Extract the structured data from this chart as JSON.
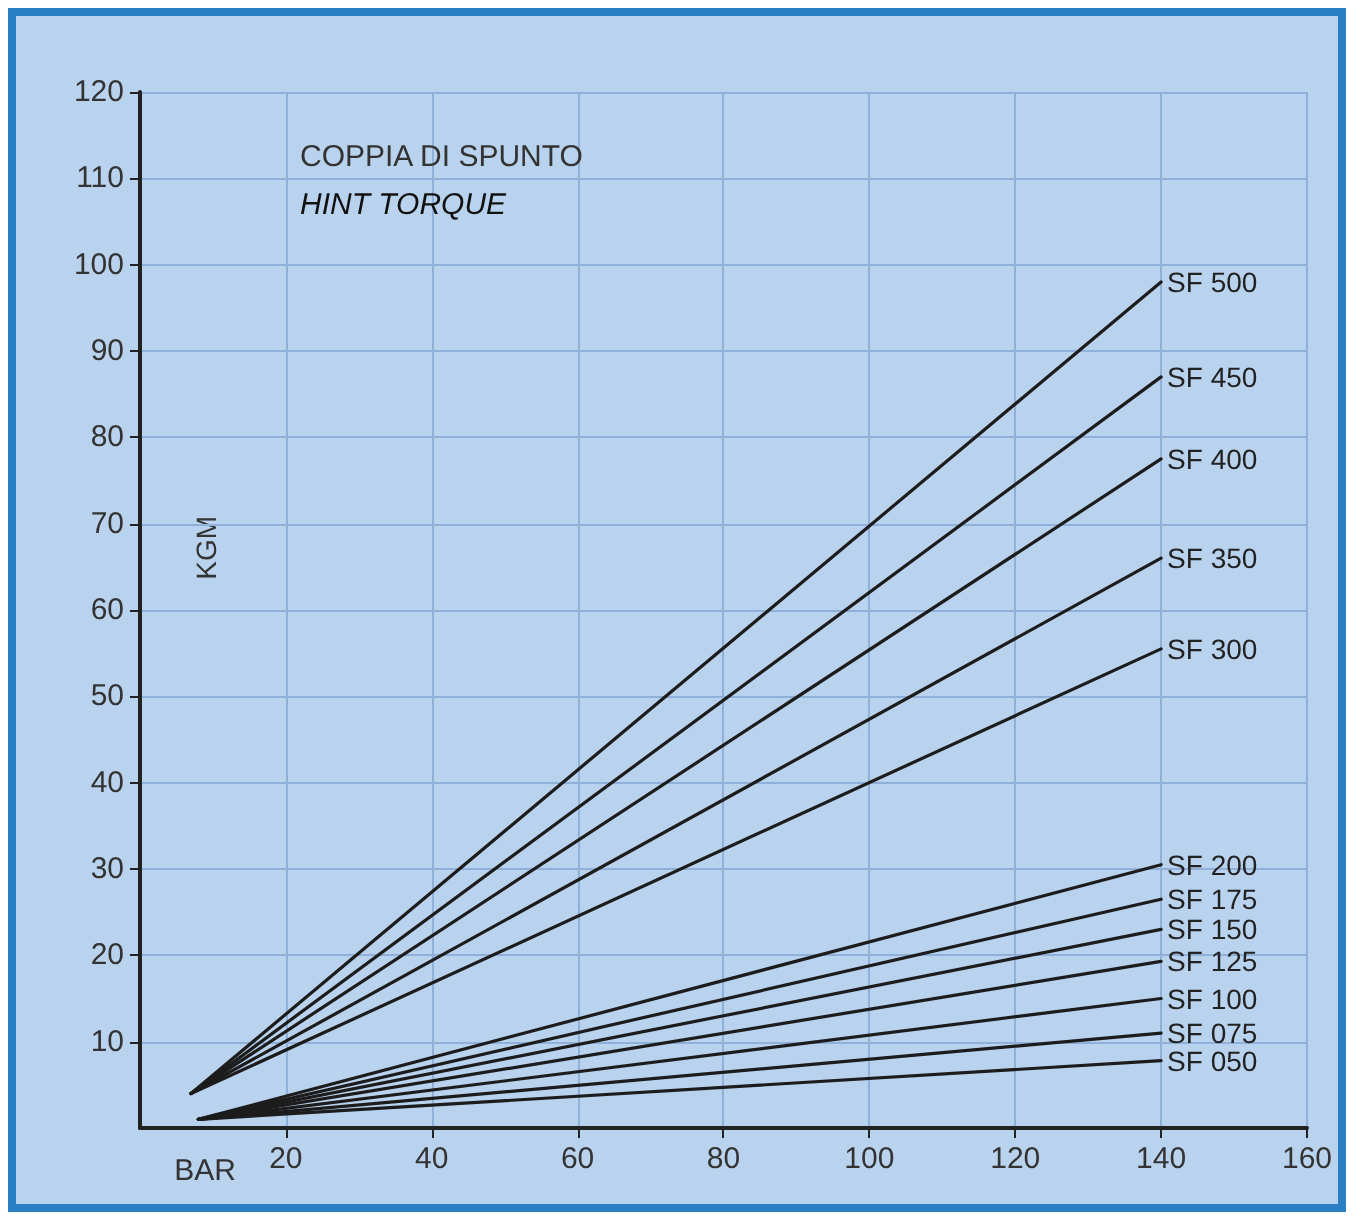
{
  "chart_data": {
    "type": "line",
    "title": "COPPIA DI SPUNTO",
    "subtitle": "HINT TORQUE",
    "xlabel": "BAR",
    "ylabel": "KGM",
    "xlim": [
      0,
      160
    ],
    "xticks": [
      20,
      40,
      60,
      80,
      100,
      120,
      140,
      160
    ],
    "ylim": [
      0,
      120
    ],
    "yticks": [
      10,
      20,
      30,
      40,
      50,
      60,
      70,
      80,
      90,
      100,
      110,
      120
    ],
    "grid": true,
    "legend": false,
    "marker": "none",
    "line_style": "solid",
    "series": [
      {
        "name": "SF 500",
        "color": "#1c1c1c",
        "x": [
          7,
          140
        ],
        "values": [
          4,
          98
        ]
      },
      {
        "name": "SF 450",
        "color": "#1c1c1c",
        "x": [
          7,
          140
        ],
        "values": [
          4,
          87
        ]
      },
      {
        "name": "SF 400",
        "color": "#1c1c1c",
        "x": [
          7,
          140
        ],
        "values": [
          4,
          77.5
        ]
      },
      {
        "name": "SF 350",
        "color": "#1c1c1c",
        "x": [
          7,
          140
        ],
        "values": [
          4,
          66
        ]
      },
      {
        "name": "SF 300",
        "color": "#1c1c1c",
        "x": [
          7,
          140
        ],
        "values": [
          4,
          55.5
        ]
      },
      {
        "name": "SF 200",
        "color": "#1c1c1c",
        "x": [
          8,
          140
        ],
        "values": [
          1,
          30.5
        ]
      },
      {
        "name": "SF 175",
        "color": "#1c1c1c",
        "x": [
          8,
          140
        ],
        "values": [
          1,
          26.5
        ]
      },
      {
        "name": "SF 150",
        "color": "#1c1c1c",
        "x": [
          8,
          140
        ],
        "values": [
          1,
          23
        ]
      },
      {
        "name": "SF 125",
        "color": "#1c1c1c",
        "x": [
          8,
          140
        ],
        "values": [
          1,
          19.3
        ]
      },
      {
        "name": "SF 100",
        "color": "#1c1c1c",
        "x": [
          8,
          140
        ],
        "values": [
          1,
          15
        ]
      },
      {
        "name": "SF 075",
        "color": "#1c1c1c",
        "x": [
          8,
          140
        ],
        "values": [
          1,
          11
        ]
      },
      {
        "name": "SF 050",
        "color": "#1c1c1c",
        "x": [
          8,
          140
        ],
        "values": [
          1,
          7.8
        ]
      }
    ]
  }
}
